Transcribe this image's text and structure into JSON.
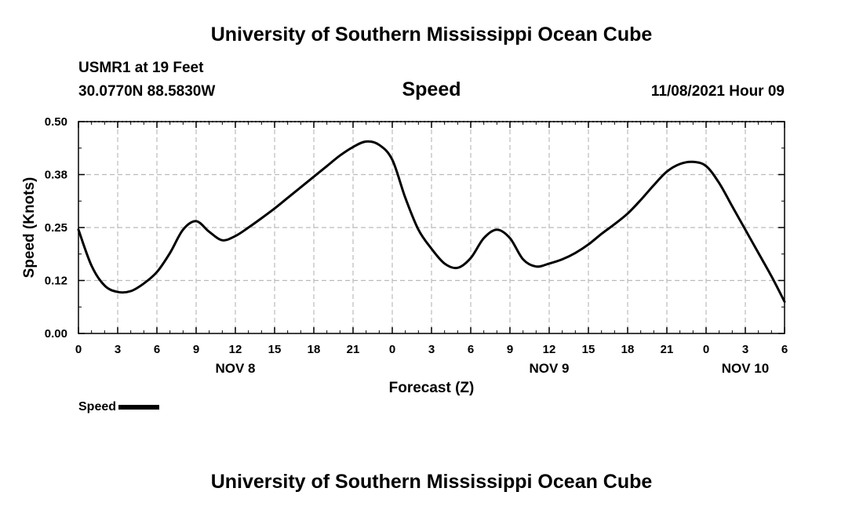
{
  "header": {
    "title": "University of Southern Mississippi Ocean Cube",
    "station": "USMR1 at 19 Feet",
    "coordinates": "30.0770N  88.5830W",
    "parameter": "Speed",
    "datetime": "11/08/2021 Hour 09"
  },
  "footer": {
    "title": "University of Southern Mississippi Ocean Cube"
  },
  "legend": {
    "label": "Speed",
    "color": "#000000"
  },
  "chart_data": {
    "type": "line",
    "title": "Speed",
    "xlabel": "Forecast (Z)",
    "ylabel": "Speed (Knots)",
    "xlim": [
      0,
      54
    ],
    "ylim": [
      0,
      0.5
    ],
    "grid": true,
    "x_ticks": [
      0,
      3,
      6,
      9,
      12,
      15,
      18,
      21,
      24,
      27,
      30,
      33,
      36,
      39,
      42,
      45,
      48,
      51,
      54
    ],
    "x_tick_labels": [
      "0",
      "3",
      "6",
      "9",
      "12",
      "15",
      "18",
      "21",
      "0",
      "3",
      "6",
      "9",
      "12",
      "15",
      "18",
      "21",
      "0",
      "3",
      "6"
    ],
    "day_labels": [
      {
        "x": 12,
        "label": "NOV 8"
      },
      {
        "x": 36,
        "label": "NOV 9"
      },
      {
        "x": 51,
        "label": "NOV 10"
      }
    ],
    "y_ticks": [
      0.0,
      0.125,
      0.25,
      0.375,
      0.5
    ],
    "y_tick_labels": [
      "0.00",
      "0.12",
      "0.25",
      "0.38",
      "0.50"
    ],
    "series": [
      {
        "name": "Speed",
        "color": "#000000",
        "x": [
          0,
          1,
          2,
          3,
          4,
          5,
          6,
          7,
          8,
          9,
          10,
          11,
          12,
          13,
          14,
          15,
          16,
          17,
          18,
          19,
          20,
          21,
          22,
          23,
          24,
          25,
          26,
          27,
          28,
          29,
          30,
          31,
          32,
          33,
          34,
          35,
          36,
          37,
          38,
          39,
          40,
          41,
          42,
          43,
          44,
          45,
          46,
          47,
          48,
          49,
          50,
          51,
          52,
          53,
          54
        ],
        "values": [
          0.245,
          0.16,
          0.113,
          0.098,
          0.1,
          0.118,
          0.145,
          0.19,
          0.245,
          0.265,
          0.24,
          0.22,
          0.23,
          0.25,
          0.272,
          0.295,
          0.32,
          0.345,
          0.37,
          0.395,
          0.42,
          0.44,
          0.453,
          0.445,
          0.41,
          0.32,
          0.245,
          0.2,
          0.165,
          0.155,
          0.178,
          0.225,
          0.245,
          0.225,
          0.175,
          0.158,
          0.165,
          0.175,
          0.19,
          0.21,
          0.235,
          0.258,
          0.283,
          0.315,
          0.35,
          0.382,
          0.4,
          0.405,
          0.395,
          0.355,
          0.3,
          0.245,
          0.19,
          0.135,
          0.075
        ]
      }
    ]
  }
}
